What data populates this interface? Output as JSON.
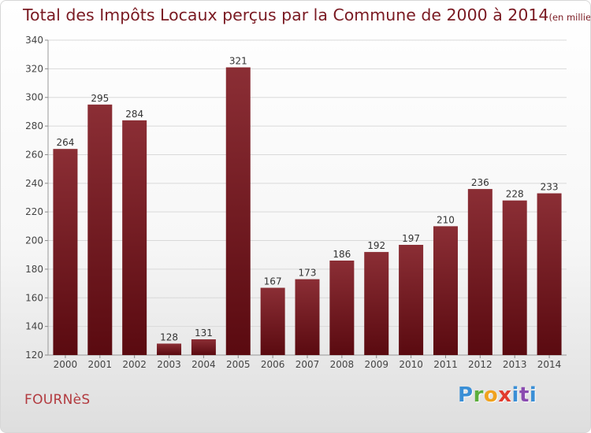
{
  "header": {
    "title": "Total des Impôts Locaux perçus par la Commune de 2000 à 2014",
    "unit": "(en milliers d'€)"
  },
  "footer": {
    "commune": "FOURNèS",
    "logo": "Proxiti"
  },
  "colors": {
    "bar_top": "#8b2e35",
    "bar_bottom": "#5a0a10",
    "title": "#7a1a22",
    "commune": "#b23a3f",
    "axis_text": "#444444",
    "grid": "#d9d9d9"
  },
  "chart_data": {
    "type": "bar",
    "title": "Total des Impôts Locaux perçus par la Commune de 2000 à 2014",
    "subtitle": "(en milliers d'€)",
    "categories": [
      "2000",
      "2001",
      "2002",
      "2003",
      "2004",
      "2005",
      "2006",
      "2007",
      "2008",
      "2009",
      "2010",
      "2011",
      "2012",
      "2013",
      "2014"
    ],
    "values": [
      264,
      295,
      284,
      128,
      131,
      321,
      167,
      173,
      186,
      192,
      197,
      210,
      236,
      228,
      233
    ],
    "ylim": [
      120,
      340
    ],
    "yticks": [
      120,
      140,
      160,
      180,
      200,
      220,
      240,
      260,
      280,
      300,
      320,
      340
    ],
    "grid": "horizontal",
    "data_labels": true
  }
}
